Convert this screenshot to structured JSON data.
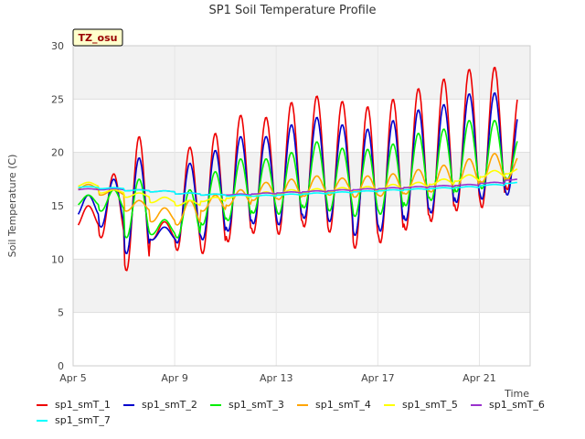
{
  "chart_data": {
    "type": "line",
    "title": "SP1 Soil Temperature Profile",
    "xlabel": "Time",
    "ylabel": "Soil Temperature (C)",
    "annotation": "TZ_osu",
    "xlim": [
      0,
      18
    ],
    "ylim": [
      0,
      30
    ],
    "yticks": [
      0,
      5,
      10,
      15,
      20,
      25,
      30
    ],
    "xticks": [
      {
        "day": 0,
        "label": "Apr 5"
      },
      {
        "day": 4,
        "label": "Apr 9"
      },
      {
        "day": 8,
        "label": "Apr 13"
      },
      {
        "day": 12,
        "label": "Apr 17"
      },
      {
        "day": 16,
        "label": "Apr 21"
      }
    ],
    "grid": true,
    "legend_position": "bottom",
    "x_start": 0.2,
    "x_end": 17.5,
    "series": [
      {
        "name": "sp1_smT_1",
        "color": "#ee0000",
        "daily_peak": [
          15.0,
          18.0,
          21.5,
          13.5,
          20.5,
          21.8,
          23.5,
          23.3,
          24.7,
          25.3,
          24.8,
          24.3,
          25.0,
          26.0,
          26.9,
          27.8,
          28.0,
          26.0
        ],
        "daily_min": [
          13.0,
          12.0,
          8.9,
          11.8,
          10.8,
          10.5,
          11.6,
          12.4,
          12.3,
          13.0,
          12.5,
          11.0,
          11.5,
          12.7,
          13.5,
          14.5,
          14.8,
          16.5
        ]
      },
      {
        "name": "sp1_smT_2",
        "color": "#0000cc",
        "daily_peak": [
          16.0,
          17.5,
          19.5,
          13.0,
          19.0,
          20.2,
          21.5,
          21.5,
          22.6,
          23.3,
          22.6,
          22.2,
          23.0,
          24.0,
          24.5,
          25.5,
          25.6,
          24.0
        ],
        "daily_min": [
          14.0,
          13.0,
          10.5,
          11.8,
          11.5,
          11.8,
          12.6,
          13.3,
          13.2,
          13.8,
          13.5,
          12.2,
          12.6,
          13.6,
          14.3,
          15.3,
          15.6,
          16.0
        ]
      },
      {
        "name": "sp1_smT_3",
        "color": "#00ee00",
        "daily_peak": [
          16.0,
          16.5,
          17.5,
          13.7,
          16.5,
          18.2,
          19.4,
          19.4,
          20.0,
          21.0,
          20.4,
          20.3,
          20.8,
          21.8,
          22.2,
          23.0,
          23.0,
          21.5
        ],
        "daily_min": [
          15.0,
          14.5,
          12.0,
          12.3,
          12.0,
          13.2,
          13.6,
          14.3,
          14.2,
          14.8,
          14.5,
          14.0,
          14.2,
          15.0,
          15.5,
          16.3,
          16.6,
          17.5
        ]
      },
      {
        "name": "sp1_smT_4",
        "color": "#ffa500",
        "daily_peak": [
          17.0,
          16.5,
          15.5,
          14.8,
          15.5,
          16.0,
          16.5,
          17.2,
          17.5,
          17.8,
          17.6,
          17.8,
          18.0,
          18.4,
          18.8,
          19.4,
          19.9,
          19.7
        ],
        "daily_min": [
          16.5,
          16.0,
          14.5,
          13.5,
          13.2,
          14.5,
          15.0,
          15.5,
          15.6,
          15.9,
          16.0,
          15.8,
          15.9,
          16.1,
          16.3,
          16.7,
          17.2,
          17.5
        ]
      },
      {
        "name": "sp1_smT_5",
        "color": "#ffff00",
        "daily_peak": [
          17.2,
          16.5,
          16.2,
          15.8,
          15.5,
          15.8,
          16.1,
          16.3,
          16.5,
          16.6,
          16.7,
          16.8,
          17.0,
          17.2,
          17.5,
          17.9,
          18.3,
          18.5
        ],
        "daily_min": [
          16.8,
          16.2,
          15.8,
          15.3,
          15.0,
          15.4,
          15.7,
          15.9,
          16.1,
          16.2,
          16.3,
          16.4,
          16.5,
          16.7,
          17.0,
          17.3,
          17.7,
          18.0
        ]
      },
      {
        "name": "sp1_smT_6",
        "color": "#9a32cd",
        "daily_peak": [
          16.6,
          16.6,
          16.5,
          16.4,
          16.2,
          16.1,
          16.1,
          16.2,
          16.3,
          16.4,
          16.5,
          16.6,
          16.7,
          16.8,
          16.9,
          17.0,
          17.2,
          17.5
        ],
        "daily_min": [
          16.5,
          16.5,
          16.4,
          16.3,
          16.1,
          16.0,
          16.0,
          16.1,
          16.2,
          16.3,
          16.4,
          16.5,
          16.6,
          16.7,
          16.8,
          16.9,
          17.1,
          17.4
        ]
      },
      {
        "name": "sp1_smT_7",
        "color": "#00ffff",
        "daily_peak": [
          16.8,
          16.7,
          16.5,
          16.4,
          16.2,
          16.1,
          16.0,
          16.0,
          16.1,
          16.2,
          16.3,
          16.4,
          16.5,
          16.6,
          16.7,
          16.8,
          17.0,
          17.2
        ],
        "daily_min": [
          16.7,
          16.6,
          16.4,
          16.3,
          16.1,
          16.0,
          15.9,
          15.9,
          16.0,
          16.1,
          16.2,
          16.3,
          16.4,
          16.5,
          16.6,
          16.7,
          16.9,
          17.1
        ]
      }
    ]
  }
}
